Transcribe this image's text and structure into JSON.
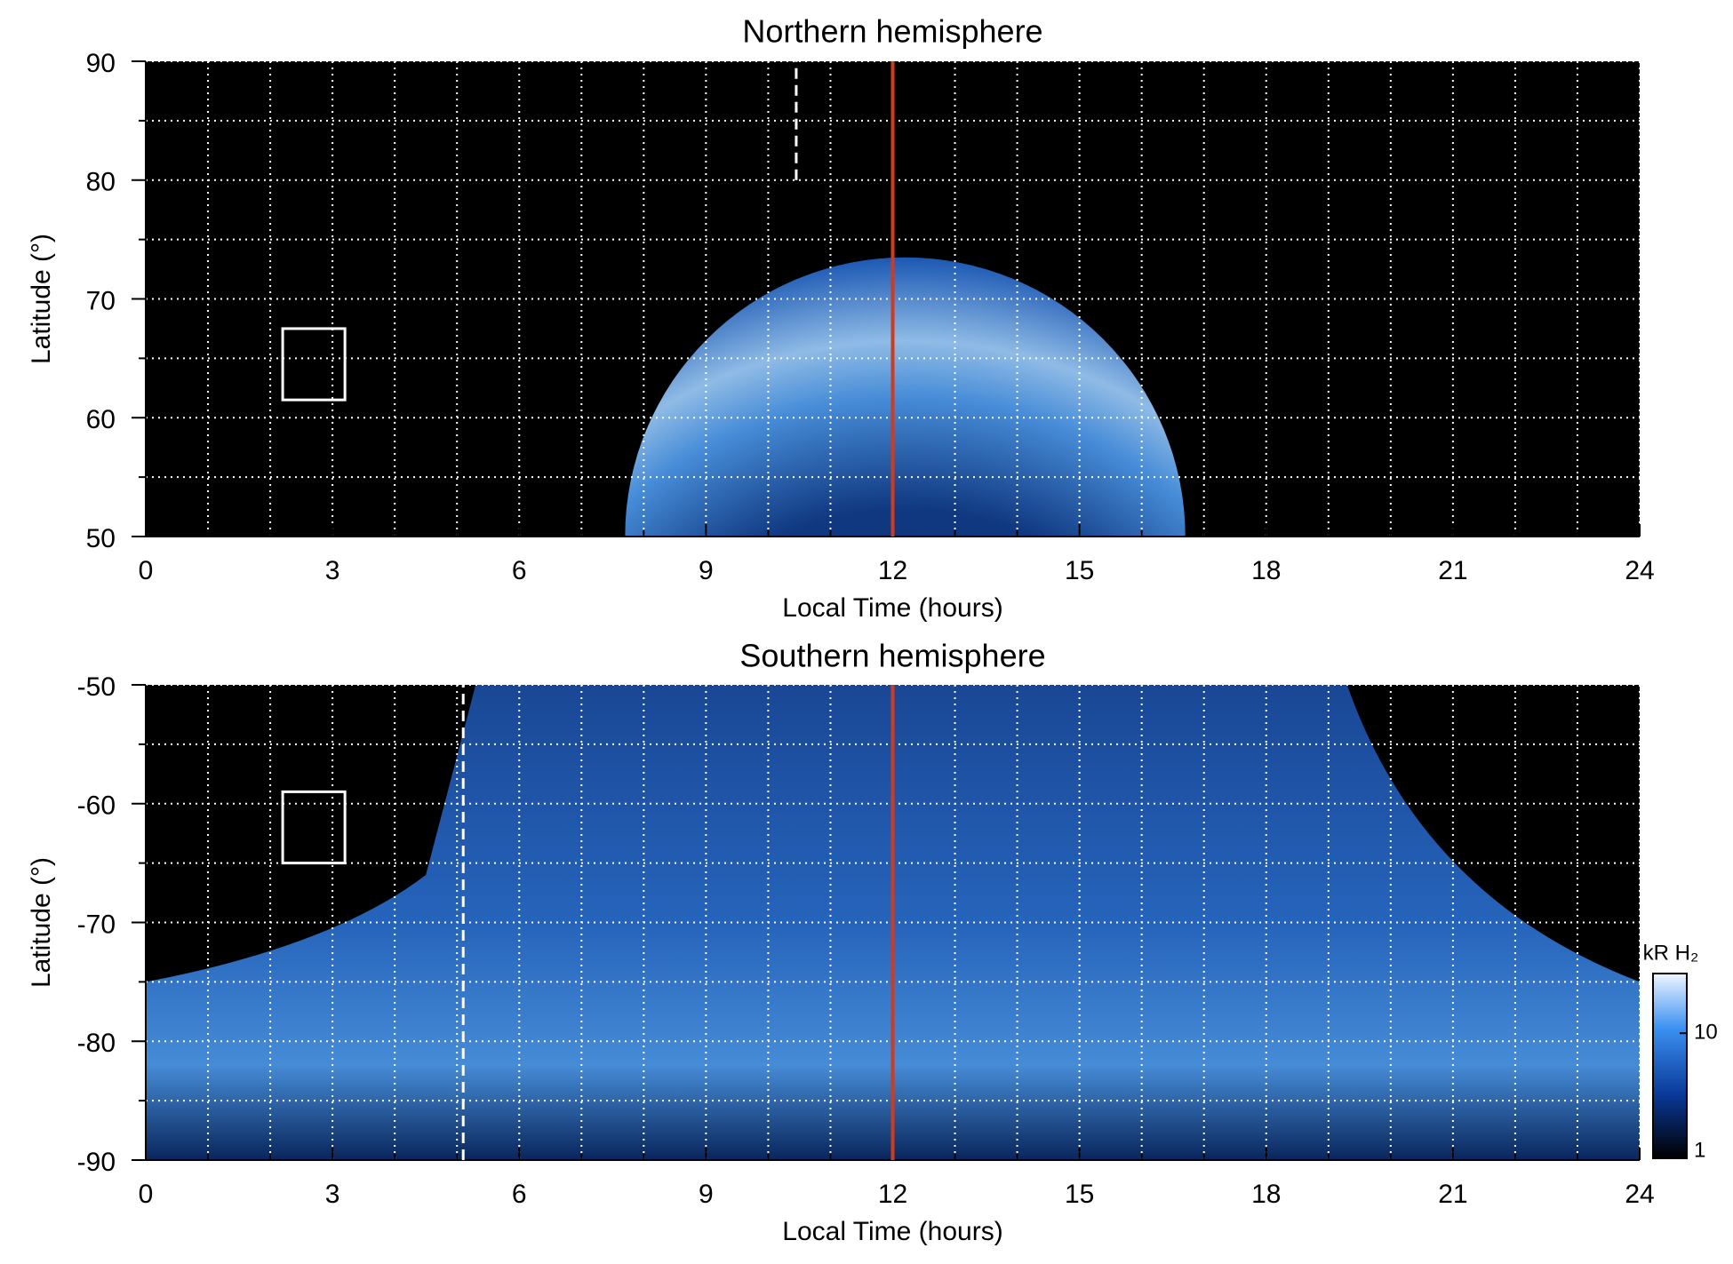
{
  "chart_data": [
    {
      "type": "heatmap",
      "title": "Northern hemisphere",
      "xlabel": "Local Time (hours)",
      "ylabel": "Latitude (°)",
      "xlim": [
        0,
        24
      ],
      "xticks": [
        0,
        3,
        6,
        9,
        12,
        15,
        18,
        21,
        24
      ],
      "xminorticks": [
        1,
        2,
        4,
        5,
        7,
        8,
        10,
        11,
        13,
        14,
        16,
        17,
        19,
        20,
        22,
        23
      ],
      "ylim": [
        50,
        90
      ],
      "yticks": [
        50,
        60,
        70,
        80,
        90
      ],
      "yminorticks": [
        55,
        65,
        75,
        85
      ],
      "grid": true,
      "noon_line": {
        "x": 12,
        "color": "#d03a1e"
      },
      "dashed_line": {
        "x": 10.45,
        "y": [
          80,
          90
        ]
      },
      "box": {
        "x": [
          2.2,
          3.2
        ],
        "y": [
          61.5,
          67.5
        ]
      }
    },
    {
      "type": "heatmap",
      "title": "Southern hemisphere",
      "xlabel": "Local Time (hours)",
      "ylabel": "Latitude (°)",
      "xlim": [
        0,
        24
      ],
      "xticks": [
        0,
        3,
        6,
        9,
        12,
        15,
        18,
        21,
        24
      ],
      "xminorticks": [
        1,
        2,
        4,
        5,
        7,
        8,
        10,
        11,
        13,
        14,
        16,
        17,
        19,
        20,
        22,
        23
      ],
      "ylim": [
        -90,
        -50
      ],
      "yticks": [
        -90,
        -80,
        -70,
        -60,
        -50
      ],
      "yminorticks": [
        -85,
        -75,
        -65,
        -55
      ],
      "grid": true,
      "noon_line": {
        "x": 12,
        "color": "#d03a1e"
      },
      "dashed_line": {
        "x": 5.1,
        "y": [
          -90,
          -50
        ]
      },
      "box": {
        "x": [
          2.2,
          3.2
        ],
        "y": [
          -65,
          -59
        ]
      },
      "colorbar": {
        "label": "kR H₂",
        "lim": [
          1,
          30
        ],
        "ticks": [
          1,
          10
        ],
        "log": true
      }
    }
  ]
}
